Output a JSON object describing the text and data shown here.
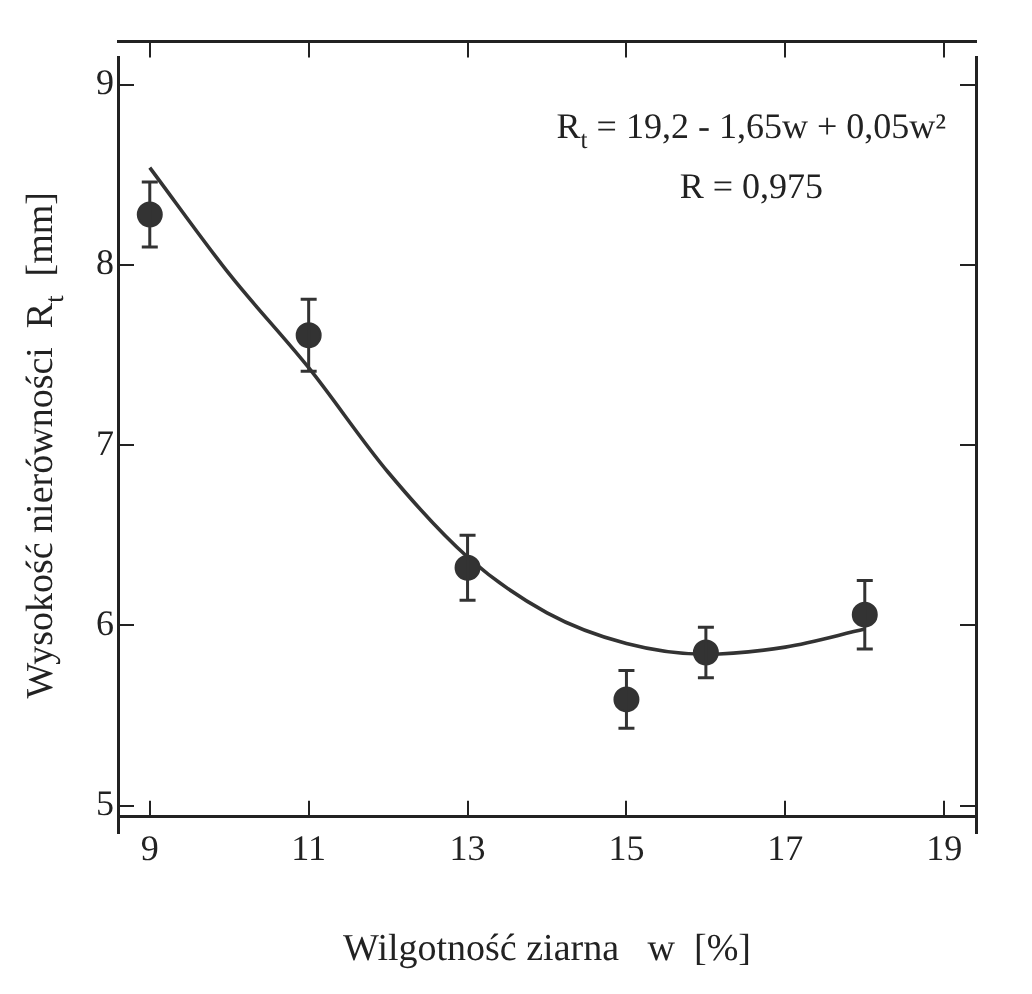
{
  "chart_data": {
    "type": "scatter",
    "xlabel": "Wilgotność ziarna   w  [%]",
    "ylabel": "Wysokość nierówności  R$_{t}$  [mm]",
    "annotations": [
      "R$_{t}$ = 19,2 - 1,65w + 0,05w²",
      "R = 0,975"
    ],
    "xlim": [
      8.6,
      19.4
    ],
    "xticks": [
      9,
      11,
      13,
      15,
      17,
      19
    ],
    "ylim": [
      4.85,
      9.15
    ],
    "yticks": [
      5,
      6,
      7,
      8,
      9
    ],
    "grid": false,
    "legend": false,
    "marker": "circle",
    "series": [
      {
        "type": "scatter",
        "color": "#333333",
        "x": [
          9,
          11,
          13,
          15,
          16,
          18
        ],
        "values": [
          8.28,
          7.61,
          6.32,
          5.59,
          5.85,
          6.06
        ],
        "errors": [
          0.18,
          0.2,
          0.18,
          0.16,
          0.14,
          0.19
        ]
      },
      {
        "type": "line",
        "color": "#333333",
        "line_style": "solid",
        "marker": "none",
        "x": [
          9,
          10,
          11,
          12,
          13,
          14,
          15,
          16,
          17,
          18
        ],
        "values": [
          8.54,
          7.95,
          7.43,
          6.85,
          6.38,
          6.07,
          5.9,
          5.84,
          5.88,
          5.98
        ]
      }
    ]
  }
}
